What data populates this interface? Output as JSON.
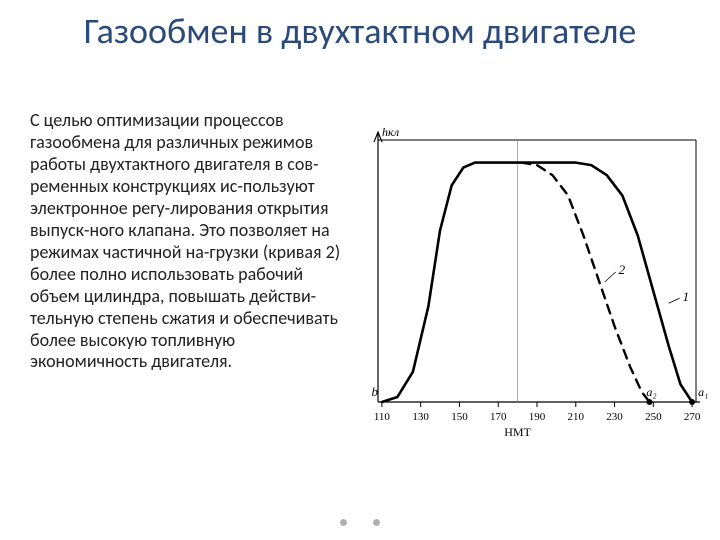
{
  "title": "Газообмен в двухтактном двигателе",
  "body_text": "С целью оптимизации процессов газообмена для различных режимов работы двухтактного двигателя в сов-ременных конструкциях ис-пользуют электронное регу-лирования открытия выпуск-ного клапана. Это позволяет на режимах частичной на-грузки (кривая 2) более полно использовать рабочий объем цилиндра, повышать действи-тельную степень сжатия и обеспечивать более высокую топливную экономичность двигателя.",
  "title_color": "#2a4a7a",
  "text_color": "#222222",
  "background_color": "#ffffff",
  "title_fontsize": 36,
  "body_fontsize": 18,
  "chart": {
    "type": "line",
    "y_axis_label": "hкл",
    "x_axis_label": "НМТ",
    "point_labels": {
      "b": "b",
      "a1": "a₁",
      "a2": "a₂"
    },
    "curve_labels": {
      "c1": "1",
      "c2": "2"
    },
    "x_ticks": [
      110,
      130,
      150,
      170,
      190,
      210,
      230,
      250,
      270
    ],
    "x_range": [
      108,
      272
    ],
    "plateau_y": 0.95,
    "plot_bg": "#ffffff",
    "axis_color": "#000000",
    "tick_fontsize": 11,
    "axis_label_fontsize": 12,
    "frame_stroke_width": 1.2,
    "vertical_guide_x": 180,
    "vertical_guide_color": "#888888",
    "vertical_guide_width": 0.7,
    "curve1": {
      "stroke": "#000000",
      "width": 2.6,
      "dash": "none",
      "points_xy": [
        [
          110,
          0.0
        ],
        [
          118,
          0.02
        ],
        [
          126,
          0.12
        ],
        [
          134,
          0.38
        ],
        [
          140,
          0.68
        ],
        [
          146,
          0.86
        ],
        [
          152,
          0.93
        ],
        [
          158,
          0.95
        ],
        [
          210,
          0.95
        ],
        [
          218,
          0.94
        ],
        [
          226,
          0.9
        ],
        [
          234,
          0.82
        ],
        [
          242,
          0.66
        ],
        [
          250,
          0.44
        ],
        [
          258,
          0.22
        ],
        [
          264,
          0.07
        ],
        [
          270,
          0.0
        ]
      ]
    },
    "curve2": {
      "stroke": "#000000",
      "width": 2.4,
      "dash": "9 7",
      "points_xy": [
        [
          182,
          0.95
        ],
        [
          190,
          0.94
        ],
        [
          198,
          0.9
        ],
        [
          206,
          0.82
        ],
        [
          214,
          0.66
        ],
        [
          222,
          0.48
        ],
        [
          230,
          0.3
        ],
        [
          238,
          0.14
        ],
        [
          244,
          0.04
        ],
        [
          248,
          0.0
        ]
      ]
    },
    "marker_a1": {
      "x": 270,
      "fill": "#000000",
      "r": 3
    },
    "marker_a2": {
      "x": 248,
      "fill": "#000000",
      "r": 3
    },
    "label_b_x": 109,
    "label_1_xy": [
      262,
      0.4
    ],
    "label_2_xy": [
      228,
      0.5
    ]
  }
}
